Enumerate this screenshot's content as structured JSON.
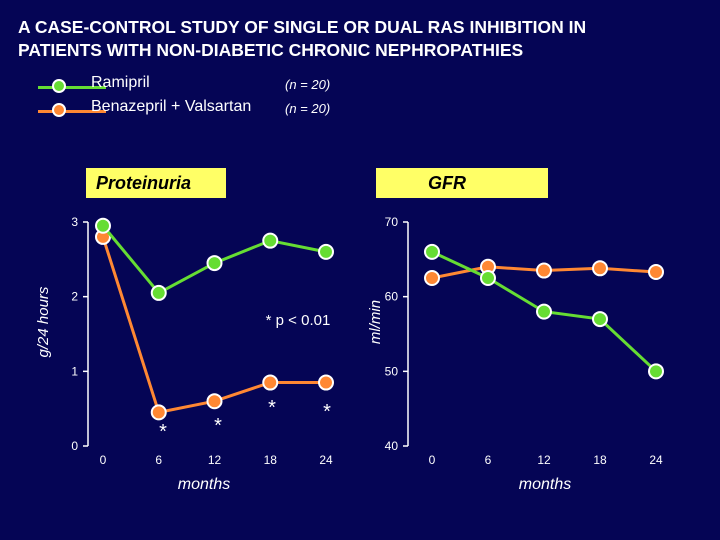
{
  "title_lines": [
    "A CASE-CONTROL STUDY OF SINGLE OR DUAL RAS INHIBITION IN",
    "PATIENTS WITH NON-DIABETIC CHRONIC NEPHROPATHIES"
  ],
  "legend": [
    {
      "label": "Ramipril",
      "n": "(n = 20)",
      "color": "#66dd33"
    },
    {
      "label": "Benazepril + Valsartan",
      "n": "(n = 20)",
      "color": "#ff8833"
    }
  ],
  "colors": {
    "background": "#050555",
    "panel_label_bg": "#ffff66",
    "axis": "#ffffff"
  },
  "chart_data": [
    {
      "type": "line",
      "panel_label": "Proteinuria",
      "ylabel": "g/24 hours",
      "xlabel": "months",
      "x": [
        0,
        6,
        12,
        18,
        24
      ],
      "x_ticks": [
        "0",
        "6",
        "12",
        "18",
        "24"
      ],
      "y_ticks": [
        "0",
        "1",
        "2",
        "3"
      ],
      "ylim": [
        0,
        3
      ],
      "series": [
        {
          "name": "Ramipril",
          "values": [
            2.95,
            2.05,
            2.45,
            2.75,
            2.6
          ]
        },
        {
          "name": "Benazepril + Valsartan",
          "values": [
            2.8,
            0.45,
            0.6,
            0.85,
            0.85
          ]
        }
      ],
      "annotations": [
        {
          "text": "* p < 0.01"
        },
        {
          "text": "*",
          "x": 0
        },
        {
          "text": "*",
          "x": 6
        },
        {
          "text": "*",
          "x": 12
        },
        {
          "text": "*",
          "x": 18
        }
      ]
    },
    {
      "type": "line",
      "panel_label": "GFR",
      "ylabel": "ml/min",
      "xlabel": "months",
      "x": [
        0,
        6,
        12,
        18,
        24
      ],
      "x_ticks": [
        "0",
        "6",
        "12",
        "18",
        "24"
      ],
      "y_ticks": [
        "40",
        "50",
        "60",
        "70"
      ],
      "ylim": [
        40,
        70
      ],
      "series": [
        {
          "name": "Ramipril",
          "values": [
            66,
            62.5,
            58,
            57,
            50
          ]
        },
        {
          "name": "Benazepril + Valsartan",
          "values": [
            62.5,
            64,
            63.5,
            63.8,
            63.3
          ]
        }
      ]
    }
  ]
}
